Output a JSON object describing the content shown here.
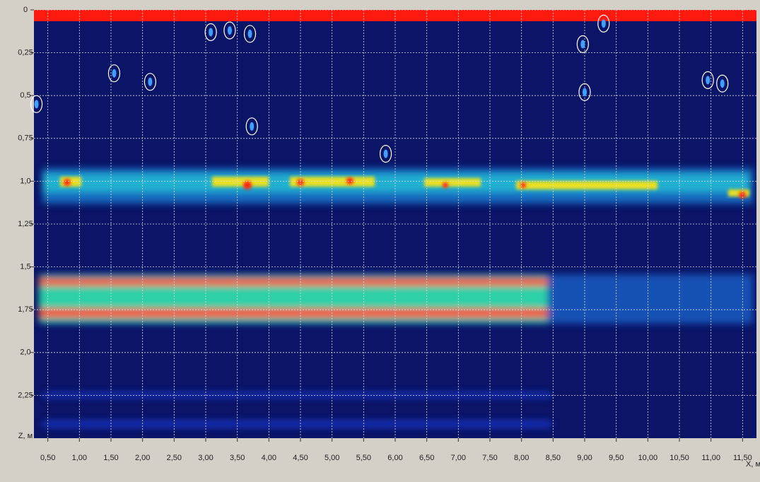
{
  "chart_data": {
    "type": "radargram",
    "x_label": "X, м",
    "y_label": "Z, м",
    "xlim": [
      0.28,
      11.72
    ],
    "ylim": [
      0,
      2.5
    ],
    "y_inverted": true,
    "grid": true,
    "xticks": [
      {
        "value": 0.5,
        "label": "0,50"
      },
      {
        "value": 1,
        "label": "1,00"
      },
      {
        "value": 1.5,
        "label": "1,50"
      },
      {
        "value": 2,
        "label": "2,00"
      },
      {
        "value": 2.5,
        "label": "2,50"
      },
      {
        "value": 3,
        "label": "3,00"
      },
      {
        "value": 3.5,
        "label": "3,50"
      },
      {
        "value": 4,
        "label": "4,00"
      },
      {
        "value": 4.5,
        "label": "4,50"
      },
      {
        "value": 5,
        "label": "5,00"
      },
      {
        "value": 5.5,
        "label": "5,50"
      },
      {
        "value": 6,
        "label": "6,00"
      },
      {
        "value": 6.5,
        "label": "6,50"
      },
      {
        "value": 7,
        "label": "7,00"
      },
      {
        "value": 7.5,
        "label": "7,50"
      },
      {
        "value": 8,
        "label": "8,00"
      },
      {
        "value": 8.5,
        "label": "8,50"
      },
      {
        "value": 9,
        "label": "9,00"
      },
      {
        "value": 9.5,
        "label": "9,50"
      },
      {
        "value": 10,
        "label": "10,00"
      },
      {
        "value": 10.5,
        "label": "10,50"
      },
      {
        "value": 11,
        "label": "11,00"
      },
      {
        "value": 11.5,
        "label": "11,50"
      }
    ],
    "yticks": [
      0,
      {
        "value": 0.25,
        "label": "0,25"
      },
      {
        "value": 0.5,
        "label": "0,5"
      },
      {
        "value": 0.75,
        "label": "0,75"
      },
      {
        "value": 1,
        "label": "1,0"
      },
      {
        "value": 1.25,
        "label": "1,25"
      },
      {
        "value": 1.5,
        "label": "1,5"
      },
      {
        "value": 1.75,
        "label": "1,75"
      },
      {
        "value": 2,
        "label": "2,0"
      },
      {
        "value": 2.25,
        "label": "2,25"
      }
    ],
    "anomalies": {
      "x": [
        0.32,
        1.55,
        2.12,
        3.08,
        3.38,
        3.7,
        3.73,
        5.85,
        8.97,
        9.0,
        9.3,
        10.95,
        11.18
      ],
      "z": [
        0.55,
        0.37,
        0.42,
        0.13,
        0.12,
        0.14,
        0.68,
        0.84,
        0.2,
        0.48,
        0.08,
        0.41,
        0.43
      ]
    }
  }
}
